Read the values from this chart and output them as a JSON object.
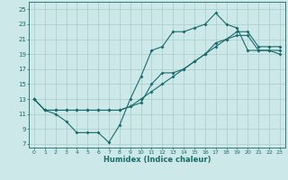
{
  "xlabel": "Humidex (Indice chaleur)",
  "ylabel": "",
  "xlim": [
    -0.5,
    23.5
  ],
  "ylim": [
    6.5,
    26
  ],
  "yticks": [
    7,
    9,
    11,
    13,
    15,
    17,
    19,
    21,
    23,
    25
  ],
  "xticks": [
    0,
    1,
    2,
    3,
    4,
    5,
    6,
    7,
    8,
    9,
    10,
    11,
    12,
    13,
    14,
    15,
    16,
    17,
    18,
    19,
    20,
    21,
    22,
    23
  ],
  "bg_color": "#cce8e8",
  "grid_color": "#aacccc",
  "line_color": "#1a6b6b",
  "line1_x": [
    0,
    1,
    2,
    3,
    4,
    5,
    6,
    7,
    8,
    9,
    10,
    11,
    12,
    13,
    14,
    15,
    16,
    17,
    18,
    19,
    20,
    21,
    22,
    23
  ],
  "line1_y": [
    13,
    11.5,
    11,
    10,
    8.5,
    8.5,
    8.5,
    7.2,
    9.5,
    13,
    16,
    19.5,
    20,
    22,
    22,
    22.5,
    23,
    24.5,
    23,
    22.5,
    19.5,
    19.5,
    19.5,
    19.5
  ],
  "line2_x": [
    0,
    1,
    2,
    3,
    4,
    5,
    6,
    7,
    8,
    9,
    10,
    11,
    12,
    13,
    14,
    15,
    16,
    17,
    18,
    19,
    20,
    21,
    22,
    23
  ],
  "line2_y": [
    13,
    11.5,
    11.5,
    11.5,
    11.5,
    11.5,
    11.5,
    11.5,
    11.5,
    12,
    13,
    14,
    15,
    16,
    17,
    18,
    19,
    20,
    21,
    22,
    22,
    20,
    20,
    20
  ],
  "line3_x": [
    0,
    1,
    2,
    3,
    4,
    5,
    6,
    7,
    8,
    9,
    10,
    11,
    12,
    13,
    14,
    15,
    16,
    17,
    18,
    19,
    20,
    21,
    22,
    23
  ],
  "line3_y": [
    13,
    11.5,
    11.5,
    11.5,
    11.5,
    11.5,
    11.5,
    11.5,
    11.5,
    12,
    12.5,
    15,
    16.5,
    16.5,
    17,
    18,
    19,
    20.5,
    21,
    21.5,
    21.5,
    19.5,
    19.5,
    19
  ]
}
